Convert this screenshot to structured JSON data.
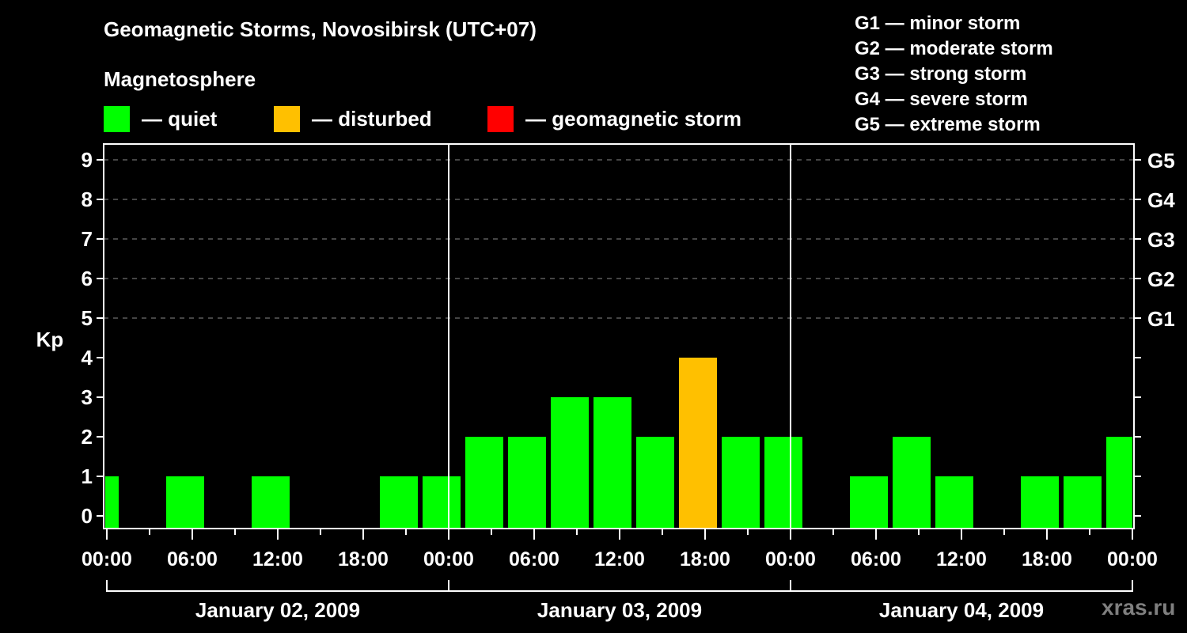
{
  "header": {
    "title": "Geomagnetic Storms, Novosibirsk (UTC+07)",
    "subtitle": "Magnetosphere"
  },
  "legend": {
    "items": [
      {
        "label": "— quiet",
        "color": "#00ff00"
      },
      {
        "label": "— disturbed",
        "color": "#ffc000"
      },
      {
        "label": "— geomagnetic storm",
        "color": "#ff0000"
      }
    ]
  },
  "g_scale": {
    "items": [
      "G1 — minor storm",
      "G2 — moderate storm",
      "G3 — strong storm",
      "G4 — severe storm",
      "G5 — extreme storm"
    ]
  },
  "watermark": "xras.ru",
  "chart_data": {
    "type": "bar",
    "title": "Geomagnetic Storms, Novosibirsk (UTC+07)",
    "ylabel": "Kp",
    "ylim": [
      0,
      9
    ],
    "yticks": [
      0,
      1,
      2,
      3,
      4,
      5,
      6,
      7,
      8,
      9
    ],
    "right_axis_labels": [
      {
        "kp": 5,
        "label": "G1"
      },
      {
        "kp": 6,
        "label": "G2"
      },
      {
        "kp": 7,
        "label": "G3"
      },
      {
        "kp": 8,
        "label": "G4"
      },
      {
        "kp": 9,
        "label": "G5"
      }
    ],
    "grid": "dashed horizontal at Kp 5-9",
    "xticks": [
      "00:00",
      "06:00",
      "12:00",
      "18:00",
      "00:00",
      "06:00",
      "12:00",
      "18:00",
      "00:00",
      "06:00",
      "12:00",
      "18:00",
      "00:00"
    ],
    "days": [
      "January 02, 2009",
      "January 03, 2009",
      "January 04, 2009"
    ],
    "interval_hours": 3,
    "categories": [
      "Jan02 ~22:00(prev)",
      "Jan02 ~01:00",
      "Jan02 ~04:00",
      "Jan02 ~07:00",
      "Jan02 ~10:00",
      "Jan02 ~13:00",
      "Jan02 ~16:00",
      "Jan02 ~19:00",
      "Jan02 ~22:00",
      "Jan03 ~01:00",
      "Jan03 ~04:00",
      "Jan03 ~07:00",
      "Jan03 ~10:00",
      "Jan03 ~13:00",
      "Jan03 ~16:00",
      "Jan03 ~19:00",
      "Jan03 ~22:00",
      "Jan04 ~01:00",
      "Jan04 ~04:00",
      "Jan04 ~07:00",
      "Jan04 ~10:00",
      "Jan04 ~13:00",
      "Jan04 ~16:00",
      "Jan04 ~19:00",
      "Jan04 ~22:00"
    ],
    "values": [
      1,
      0,
      1,
      0,
      1,
      0,
      0,
      1,
      1,
      2,
      2,
      3,
      3,
      2,
      4,
      2,
      2,
      0,
      1,
      2,
      1,
      0,
      1,
      1,
      2
    ],
    "status": [
      "quiet",
      "none",
      "quiet",
      "none",
      "quiet",
      "none",
      "none",
      "quiet",
      "quiet",
      "quiet",
      "quiet",
      "quiet",
      "quiet",
      "quiet",
      "disturbed",
      "quiet",
      "quiet",
      "none",
      "quiet",
      "quiet",
      "quiet",
      "none",
      "quiet",
      "quiet",
      "quiet"
    ],
    "colors": {
      "quiet": "#00ff00",
      "disturbed": "#ffc000",
      "storm": "#ff0000"
    }
  }
}
